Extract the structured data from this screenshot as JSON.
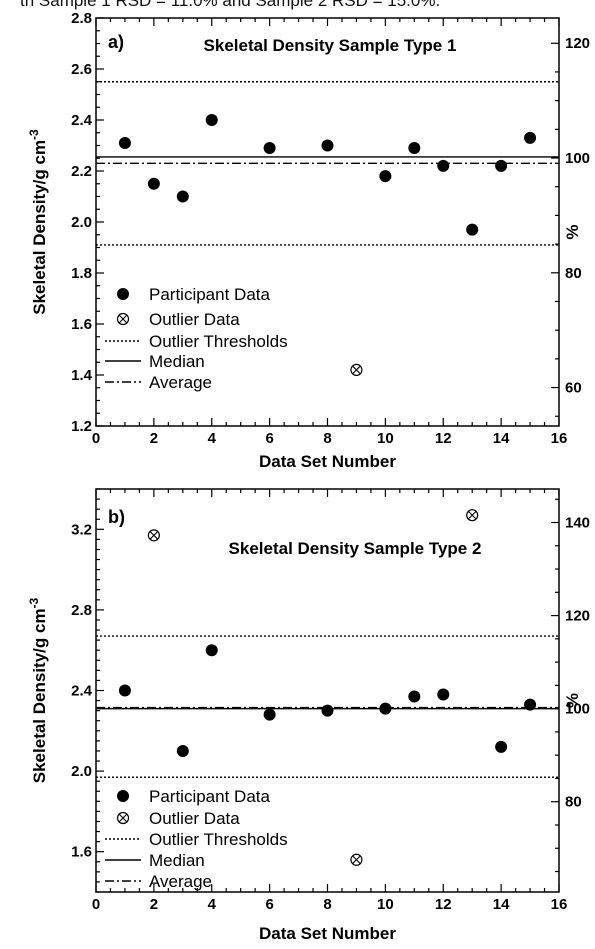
{
  "caption_fragment": "th Sample 1 RSD = 11.0% and Sample 2 RSD = 15.0%.",
  "chart_data": [
    {
      "type": "scatter",
      "panel": "a)",
      "title": "Skeletal Density Sample Type 1",
      "xlabel": "Data Set Number",
      "ylabel": "Skeletal Density/g cm",
      "ylabel_sup": "-3",
      "y2label": "%",
      "xlim": [
        0,
        16
      ],
      "ylim": [
        1.2,
        2.8
      ],
      "y2lim": [
        53.3,
        124.4
      ],
      "x_ticks": [
        "0",
        "2",
        "4",
        "6",
        "8",
        "10",
        "12",
        "14",
        "16"
      ],
      "y_ticks": [
        "1.2",
        "1.4",
        "1.6",
        "1.8",
        "2.0",
        "2.2",
        "2.4",
        "2.6",
        "2.8"
      ],
      "y2_ticks": [
        "60",
        "80",
        "100",
        "120"
      ],
      "grid": false,
      "legend_placement": "bottom-left",
      "legend": [
        "Participant Data",
        "Outlier Data",
        "Outlier Thresholds",
        "Median",
        "Average"
      ],
      "series": [
        {
          "name": "Participant Data",
          "marker": "filled-circle",
          "x": [
            1,
            2,
            3,
            4,
            6,
            8,
            10,
            11,
            12,
            13,
            14,
            15
          ],
          "y": [
            2.31,
            2.15,
            2.1,
            2.4,
            2.29,
            2.3,
            2.18,
            2.29,
            2.22,
            1.97,
            2.22,
            2.33
          ]
        },
        {
          "name": "Outlier Data",
          "marker": "circle-cross",
          "x": [
            9
          ],
          "y": [
            1.42
          ]
        }
      ],
      "lines": [
        {
          "name": "Outlier Thresholds",
          "style": "dotted",
          "y": 2.55
        },
        {
          "name": "Outlier Thresholds",
          "style": "dotted",
          "y": 1.91
        },
        {
          "name": "Median",
          "style": "solid",
          "y": 2.255
        },
        {
          "name": "Average",
          "style": "dashdot",
          "y": 2.23
        }
      ]
    },
    {
      "type": "scatter",
      "panel": "b)",
      "title": "Skeletal Density Sample Type 2",
      "xlabel": "Data Set Number",
      "ylabel": "Skeletal Density/g cm",
      "ylabel_sup": "-3",
      "y2label": "%",
      "xlim": [
        0,
        16
      ],
      "ylim": [
        1.4,
        3.4
      ],
      "y2lim": [
        60.6,
        147.2
      ],
      "x_ticks": [
        "0",
        "2",
        "4",
        "6",
        "8",
        "10",
        "12",
        "14",
        "16"
      ],
      "y_ticks": [
        "1.6",
        "2.0",
        "2.4",
        "2.8",
        "3.2"
      ],
      "y2_ticks": [
        "80",
        "100",
        "120",
        "140"
      ],
      "grid": false,
      "legend_placement": "bottom-left",
      "legend": [
        "Participant Data",
        "Outlier Data",
        "Outlier Thresholds",
        "Median",
        "Average"
      ],
      "series": [
        {
          "name": "Participant Data",
          "marker": "filled-circle",
          "x": [
            1,
            3,
            4,
            6,
            8,
            10,
            11,
            12,
            14,
            15
          ],
          "y": [
            2.4,
            2.1,
            2.6,
            2.28,
            2.3,
            2.31,
            2.37,
            2.38,
            2.12,
            2.33
          ]
        },
        {
          "name": "Outlier Data",
          "marker": "circle-cross",
          "x": [
            2,
            9,
            13
          ],
          "y": [
            3.17,
            1.56,
            3.27
          ]
        }
      ],
      "lines": [
        {
          "name": "Outlier Thresholds",
          "style": "dotted",
          "y": 2.67
        },
        {
          "name": "Outlier Thresholds",
          "style": "dotted",
          "y": 1.97
        },
        {
          "name": "Median",
          "style": "solid",
          "y": 2.31
        },
        {
          "name": "Average",
          "style": "dashdot",
          "y": 2.315
        }
      ]
    }
  ]
}
